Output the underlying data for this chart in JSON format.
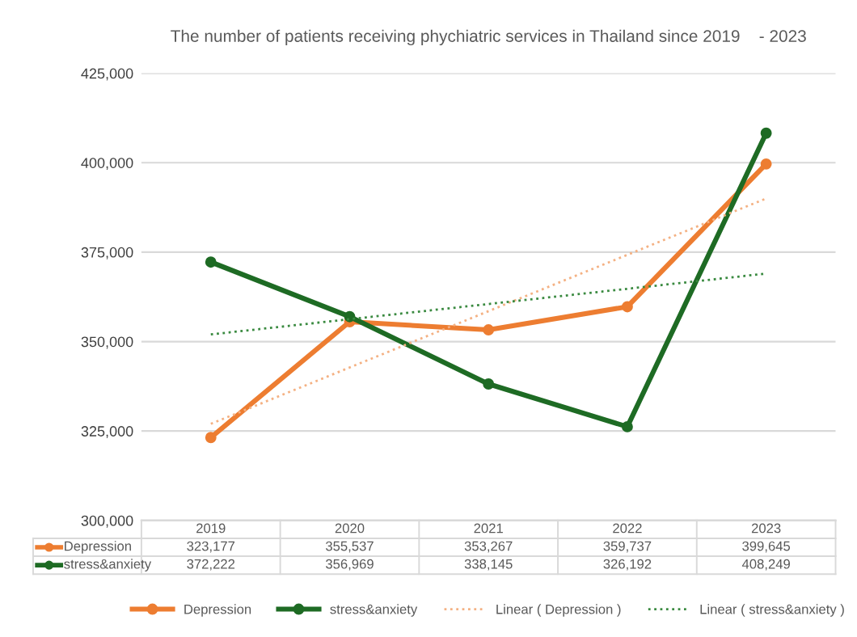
{
  "chart_data": {
    "type": "line",
    "title": "The number of patients receiving phychiatric services in Thailand since 2019    - 2023",
    "categories": [
      "2019",
      "2020",
      "2021",
      "2022",
      "2023"
    ],
    "series": [
      {
        "name": "Depression",
        "color": "#ed7d31",
        "values": [
          323177,
          355537,
          353267,
          359737,
          399645
        ],
        "value_labels": [
          "323,177",
          "355,537",
          "353,267",
          "359,737",
          "399,645"
        ],
        "marker": "circle",
        "line_style": "solid"
      },
      {
        "name": "stress&anxiety",
        "color": "#1e6b24",
        "values": [
          372222,
          356969,
          338145,
          326192,
          408249
        ],
        "value_labels": [
          "372,222",
          "356,969",
          "338,145",
          "326,192",
          "408,249"
        ],
        "marker": "circle",
        "line_style": "solid"
      },
      {
        "name": "Linear ( Depression )",
        "color": "#f4b183",
        "values": [
          327000,
          null,
          null,
          null,
          390000
        ],
        "marker": "none",
        "line_style": "dotted"
      },
      {
        "name": "Linear ( stress&anxiety )",
        "color": "#3a8a40",
        "values": [
          352000,
          null,
          null,
          null,
          369000
        ],
        "marker": "none",
        "line_style": "dotted"
      }
    ],
    "ylim": [
      300000,
      425000
    ],
    "yticks": [
      {
        "value": 300000,
        "label": "300,000"
      },
      {
        "value": 325000,
        "label": "325,000"
      },
      {
        "value": 350000,
        "label": "350,000"
      },
      {
        "value": 375000,
        "label": "375,000"
      },
      {
        "value": 400000,
        "label": "400,000"
      },
      {
        "value": 425000,
        "label": "425,000"
      }
    ],
    "grid": "y",
    "legend": "bottom"
  }
}
